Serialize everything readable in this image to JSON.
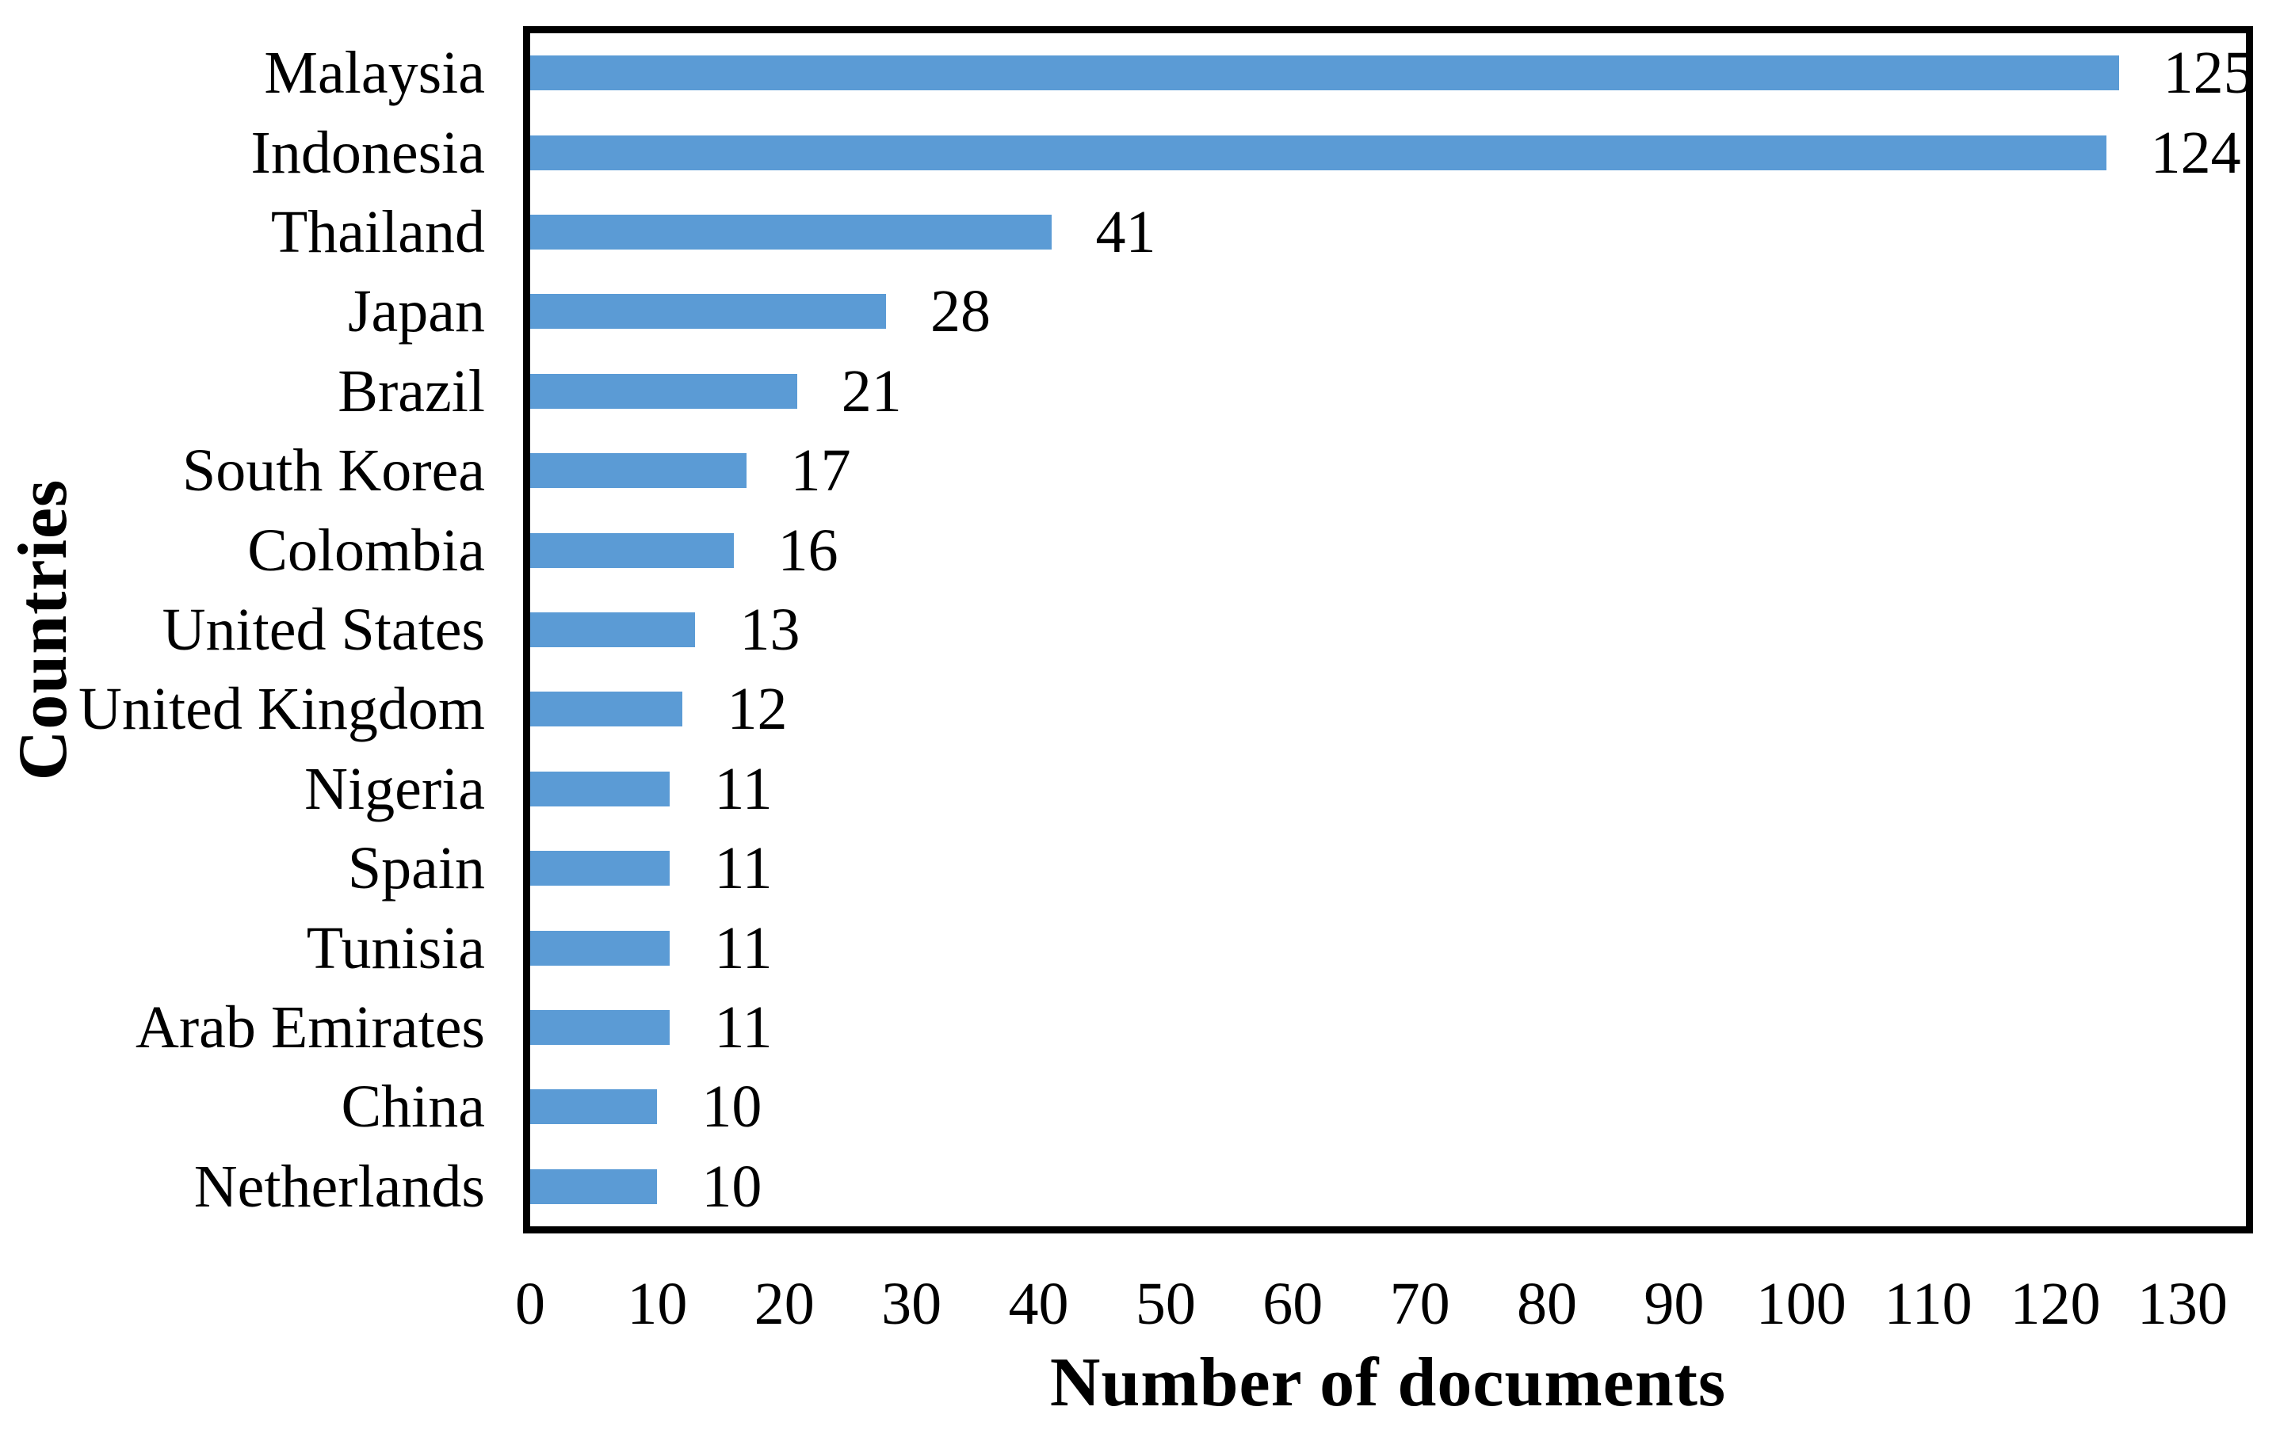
{
  "chart_data": {
    "type": "bar",
    "orientation": "horizontal",
    "title": "",
    "xlabel": "Number of documents",
    "ylabel": "Countries",
    "categories": [
      "Malaysia",
      "Indonesia",
      "Thailand",
      "Japan",
      "Brazil",
      "South Korea",
      "Colombia",
      "United States",
      "United Kingdom",
      "Nigeria",
      "Spain",
      "Tunisia",
      "Arab Emirates",
      "China",
      "Netherlands"
    ],
    "values": [
      125,
      124,
      41,
      28,
      21,
      17,
      16,
      13,
      12,
      11,
      11,
      11,
      11,
      10,
      10
    ],
    "value_labels": [
      "125",
      "124",
      "41",
      "28",
      "21",
      "17",
      "16",
      "13",
      "12",
      "11",
      "11",
      "11",
      "11",
      "10",
      "10"
    ],
    "xticks": [
      0,
      10,
      20,
      30,
      40,
      50,
      60,
      70,
      80,
      90,
      100,
      110,
      120,
      130
    ],
    "xtick_labels": [
      "0",
      "10",
      "20",
      "30",
      "40",
      "50",
      "60",
      "70",
      "80",
      "90",
      "100",
      "110",
      "120",
      "130"
    ],
    "xlim": [
      0,
      135
    ],
    "grid": false,
    "legend": false,
    "value_labels_shown": true,
    "colors": {
      "bar": "#5B9BD5",
      "plot_border": "#000000",
      "text": "#000000",
      "background": "#FFFFFF"
    }
  }
}
